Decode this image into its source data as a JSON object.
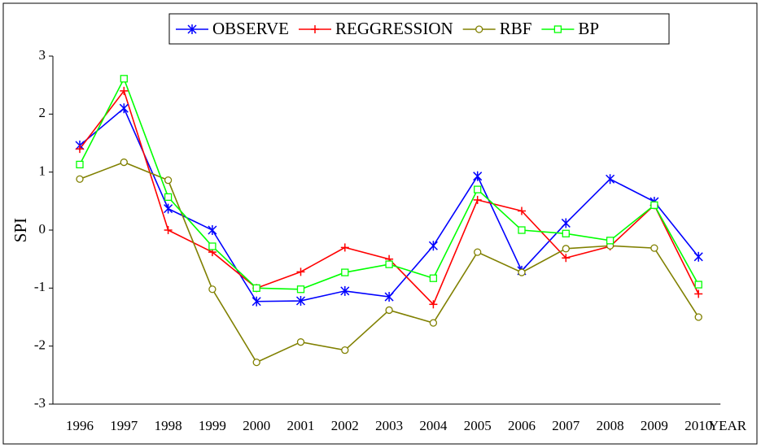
{
  "chart_data": {
    "type": "line",
    "y_label": "SPI",
    "x_label": "YEAR",
    "categories": [
      "1996",
      "1997",
      "1998",
      "1999",
      "2000",
      "2001",
      "2002",
      "2003",
      "2004",
      "2005",
      "2006",
      "2007",
      "2008",
      "2009",
      "2010"
    ],
    "series": [
      {
        "name": "OBSERVE",
        "color": "#0000ff",
        "marker": "star",
        "values": [
          1.46,
          2.1,
          0.37,
          0.0,
          -1.23,
          -1.22,
          -1.05,
          -1.15,
          -0.27,
          0.93,
          -0.7,
          0.12,
          0.88,
          0.49,
          -0.46
        ]
      },
      {
        "name": "REGGRESSION",
        "color": "#ff0000",
        "marker": "plus",
        "values": [
          1.4,
          2.4,
          0.0,
          -0.38,
          -1.0,
          -0.72,
          -0.3,
          -0.5,
          -1.28,
          0.52,
          0.33,
          -0.48,
          -0.28,
          0.43,
          -1.1
        ]
      },
      {
        "name": "RBF",
        "color": "#808000",
        "marker": "circle",
        "values": [
          0.88,
          1.17,
          0.86,
          -1.02,
          -2.28,
          -1.93,
          -2.07,
          -1.38,
          -1.6,
          -0.38,
          -0.73,
          -0.32,
          -0.27,
          -0.31,
          -1.5
        ]
      },
      {
        "name": "BP",
        "color": "#00ff00",
        "marker": "square",
        "values": [
          1.13,
          2.61,
          0.57,
          -0.28,
          -1.0,
          -1.02,
          -0.73,
          -0.59,
          -0.83,
          0.7,
          0.0,
          -0.06,
          -0.18,
          0.43,
          -0.94
        ]
      }
    ],
    "ylim": [
      -3,
      3
    ],
    "yticks": [
      -3,
      -2,
      -1,
      0,
      1,
      2,
      3
    ],
    "grid": false,
    "legend": "top"
  }
}
